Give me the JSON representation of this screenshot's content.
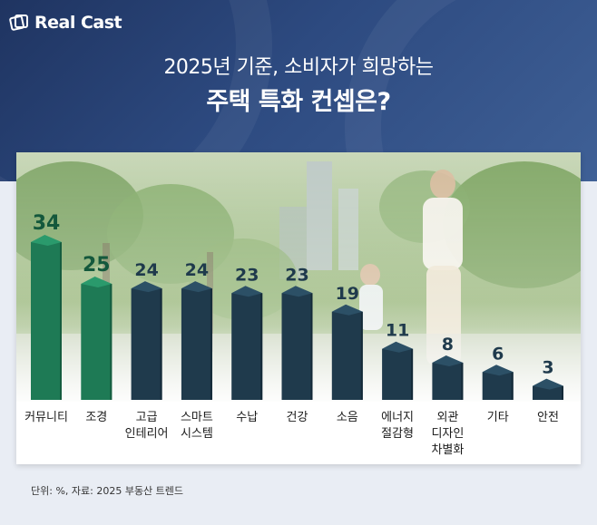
{
  "brand": {
    "name": "Real Cast",
    "icon": "realcast-logo-icon"
  },
  "title": {
    "line1": "2025년 기준, 소비자가 희망하는",
    "line2": "주택 특화 컨셉은?"
  },
  "source_note": "단위: %, 자료: 2025 부동산 트렌드",
  "colors": {
    "header_bg": "#27406f",
    "bar_highlight": "#1e7a55",
    "bar_highlight_side": "#155c3f",
    "bar_highlight_top": "#2a9a6c",
    "bar_default": "#1f3a4c",
    "bar_default_side": "#142a38",
    "bar_default_top": "#2c5066",
    "value_highlight": "#14583c",
    "value_default": "#1f3a4c"
  },
  "chart_data": {
    "type": "bar",
    "title": "2025년 기준, 소비자가 희망하는 주택 특화 컨셉은?",
    "unit": "%",
    "categories": [
      [
        "커뮤니티"
      ],
      [
        "조경"
      ],
      [
        "고급",
        "인테리어"
      ],
      [
        "스마트",
        "시스템"
      ],
      [
        "수납"
      ],
      [
        "건강"
      ],
      [
        "소음"
      ],
      [
        "에너지",
        "절감형"
      ],
      [
        "외관",
        "디자인",
        "차별화"
      ],
      [
        "기타"
      ],
      [
        "안전"
      ]
    ],
    "values": [
      34,
      25,
      24,
      24,
      23,
      23,
      19,
      11,
      8,
      6,
      3
    ],
    "highlighted": [
      0,
      1
    ],
    "ylim": [
      0,
      34
    ],
    "grid": false,
    "legend": "none"
  }
}
